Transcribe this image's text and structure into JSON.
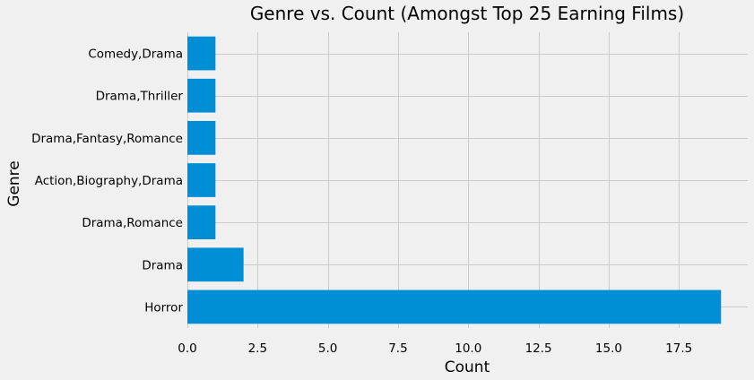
{
  "chart_data": {
    "type": "bar",
    "orientation": "horizontal",
    "title": "Genre vs. Count (Amongst Top 25 Earning Films)",
    "xlabel": "Count",
    "ylabel": "Genre",
    "categories": [
      "Horror",
      "Drama",
      "Drama,Romance",
      "Action,Biography,Drama",
      "Drama,Fantasy,Romance",
      "Drama,Thriller",
      "Comedy,Drama"
    ],
    "values": [
      19,
      2,
      1,
      1,
      1,
      1,
      1
    ],
    "xlim": [
      0,
      19.95
    ],
    "xticks": [
      0,
      2.5,
      5,
      7.5,
      10,
      12.5,
      15,
      17.5
    ],
    "xtick_labels": [
      "0.0",
      "2.5",
      "5.0",
      "7.5",
      "10.0",
      "12.5",
      "15.0",
      "17.5"
    ],
    "grid": true,
    "bar_color": "#008fd5",
    "background_color": "#f0f0f0",
    "grid_color": "#cbcbcb"
  }
}
